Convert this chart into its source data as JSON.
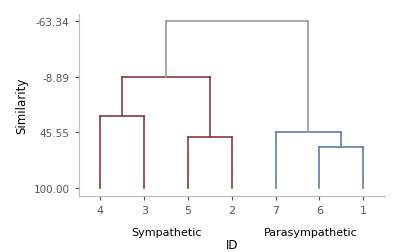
{
  "xlabel": "ID",
  "ylabel": "Similarity",
  "yticks": [
    100.0,
    45.55,
    -8.89,
    -63.34
  ],
  "ytick_labels": [
    "100.00",
    "45.55",
    "-8.89",
    "-63.34"
  ],
  "ylim": [
    108,
    -70
  ],
  "xlim": [
    0.5,
    7.5
  ],
  "xtick_positions": [
    1,
    2,
    3,
    4,
    5,
    6,
    7
  ],
  "xtick_labels": [
    "4",
    "3",
    "5",
    "2",
    "7",
    "6",
    "1"
  ],
  "group_labels": [
    {
      "text": "Sympathetic",
      "x": 2.5
    },
    {
      "text": "Parasympathetic",
      "x": 5.8
    }
  ],
  "red_color": "#8b3a3a",
  "blue_color": "#5b7fa6",
  "gray_color": "#999999",
  "background_color": "#ffffff",
  "bottom_y": 100.0,
  "red_join_43_y": 30.0,
  "red_join_52_y": 50.0,
  "red_join_all_y": -8.89,
  "blue_join_61_y": 60.0,
  "blue_join_all_y": 45.55,
  "top_link_y": -63.34,
  "red_mid_x": 2.5,
  "blue_mid_x": 5.75,
  "red_43_mid_x": 1.5,
  "red_52_mid_x": 3.5,
  "blue_61_mid_x": 6.5
}
